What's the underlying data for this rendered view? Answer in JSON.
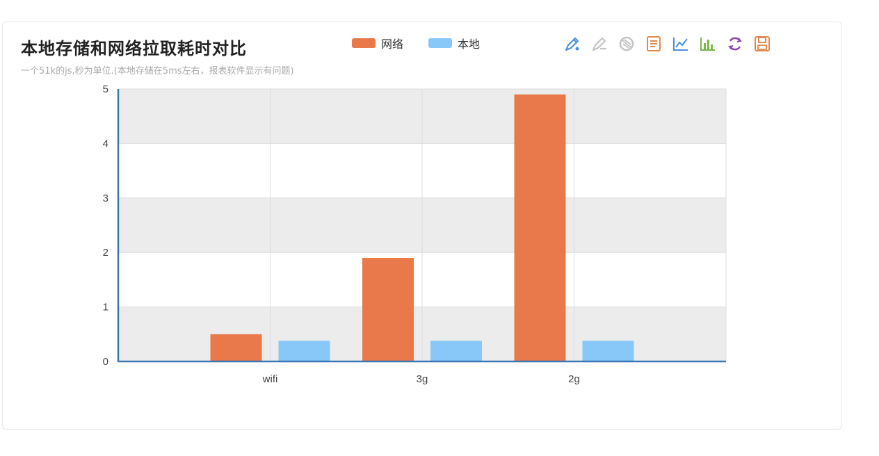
{
  "title": "本地存储和网络拉取耗时对比",
  "subtitle": "一个51k的js,秒为单位.(本地存储在5ms左右，报表软件显示有问题)",
  "toolbox": [
    {
      "name": "mark-icon",
      "color": "#4a90d9"
    },
    {
      "name": "mark-undo-icon",
      "color": "#c0c0c0"
    },
    {
      "name": "mark-clear-icon",
      "color": "#c0c0c0"
    },
    {
      "name": "data-view-icon",
      "color": "#e28a4a"
    },
    {
      "name": "line-chart-icon",
      "color": "#4a90d9"
    },
    {
      "name": "bar-chart-icon",
      "color": "#7ab648"
    },
    {
      "name": "refresh-icon",
      "color": "#8e44ad"
    },
    {
      "name": "save-image-icon",
      "color": "#e28a4a"
    }
  ],
  "chart_data": {
    "type": "bar",
    "categories": [
      "wifi",
      "3g",
      "2g"
    ],
    "series": [
      {
        "name": "网络",
        "color": "#e9794a",
        "values": [
          0.5,
          1.9,
          4.9
        ]
      },
      {
        "name": "本地",
        "color": "#87c8f8",
        "values": [
          0.38,
          0.38,
          0.38
        ]
      }
    ],
    "ylim": [
      0,
      5
    ],
    "yticks": [
      "0",
      "1",
      "2",
      "3",
      "4",
      "5"
    ],
    "grid": true,
    "legend": "top"
  }
}
